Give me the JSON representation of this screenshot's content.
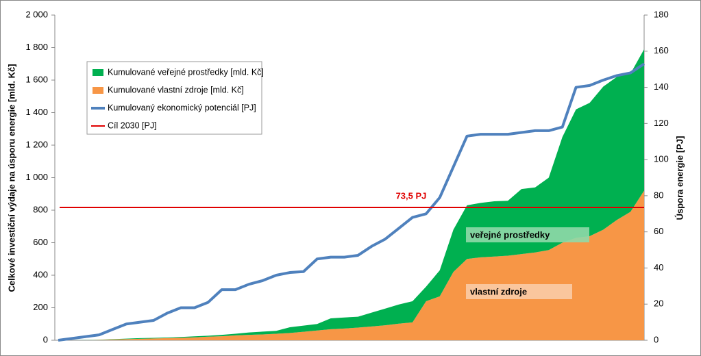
{
  "chart_data": {
    "type": "stacked-area-line",
    "categories": [
      null,
      null,
      null,
      null,
      null,
      null,
      null,
      null,
      null,
      null,
      null,
      null,
      null,
      null,
      null,
      null,
      null,
      null,
      null,
      null,
      null,
      null,
      null,
      null,
      null,
      null,
      null,
      null,
      null,
      null,
      null,
      null,
      null,
      null,
      null,
      null,
      null,
      null,
      null,
      null,
      null,
      null,
      null,
      null
    ],
    "y_label": "Celkové investiční výdaje na úsporu energie [mld. Kč]",
    "y2_label": "Úspora energie [PJ]",
    "ylim": [
      0,
      2000
    ],
    "yticks": [
      0,
      200,
      400,
      600,
      800,
      {
        "value": 1000,
        "label": "1 000"
      },
      {
        "value": 1200,
        "label": "1 200"
      },
      {
        "value": 1400,
        "label": "1 400"
      },
      {
        "value": 1600,
        "label": "1 600"
      },
      {
        "value": 1800,
        "label": "1 800"
      },
      {
        "value": 2000,
        "label": "2 000"
      }
    ],
    "y2lim": [
      0,
      180
    ],
    "y2ticks": [
      0,
      20,
      40,
      60,
      80,
      100,
      120,
      140,
      160,
      180
    ],
    "series": [
      {
        "name": "Kumulované veřejné prostředky [mld. Kč]",
        "kind": "area",
        "color": "#00b050",
        "values": [
          0,
          0,
          1,
          1,
          2,
          3,
          4,
          4,
          4,
          5,
          6,
          6,
          8,
          10,
          15,
          17,
          18,
          35,
          38,
          40,
          67,
          68,
          67,
          85,
          103,
          118,
          130,
          90,
          160,
          260,
          330,
          335,
          340,
          338,
          400,
          400,
          445,
          650,
          790,
          820,
          880,
          880,
          850,
          870
        ]
      },
      {
        "name": "Kumulované vlastní zdroje [mld. Kč]",
        "kind": "area",
        "color": "#f79646",
        "values": [
          0,
          0,
          0,
          2,
          5,
          7,
          9,
          11,
          13,
          15,
          18,
          22,
          25,
          30,
          33,
          36,
          40,
          45,
          52,
          60,
          68,
          72,
          78,
          85,
          92,
          102,
          110,
          240,
          270,
          420,
          500,
          510,
          515,
          520,
          530,
          540,
          555,
          600,
          630,
          640,
          680,
          740,
          790,
          920
        ]
      },
      {
        "name": "Kumulovaný ekonomický potenciál [PJ]",
        "kind": "line",
        "axis": "y2",
        "color": "#4f81bd",
        "values": [
          0,
          1,
          2,
          3,
          6,
          9,
          10,
          11,
          15,
          18,
          18,
          21,
          28,
          28,
          31,
          33,
          36,
          37.5,
          38,
          45,
          46,
          46,
          47,
          52,
          56,
          62,
          68,
          70,
          79,
          96,
          113,
          114,
          114,
          114,
          115,
          116,
          116,
          118,
          140,
          141,
          144,
          146.5,
          148,
          153
        ]
      },
      {
        "name": "Cíl 2030 [PJ]",
        "kind": "hline",
        "axis": "y2",
        "color": "#e00000",
        "value": 73.5,
        "value_label": "73,5 PJ"
      }
    ],
    "annotations": [
      "veřejné prostředky",
      "vlastní zdroje"
    ]
  }
}
